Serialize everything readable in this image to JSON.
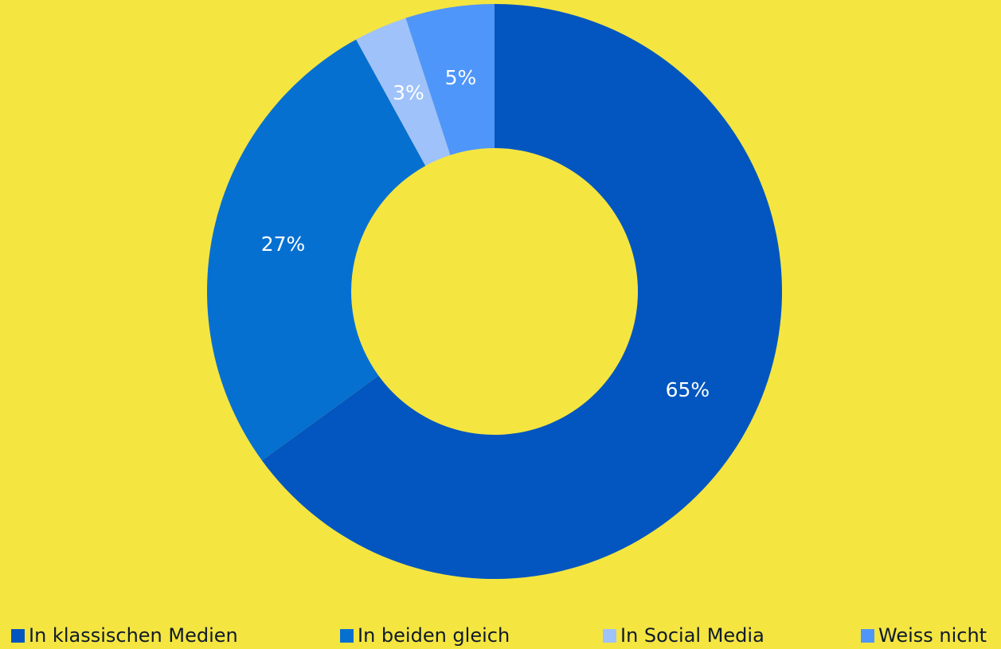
{
  "chart_data": {
    "type": "pie",
    "style": "donut",
    "title": "",
    "categories": [
      "In klassischen Medien",
      "In beiden gleich",
      "In Social Media",
      "Weiss nicht"
    ],
    "values": [
      65,
      27,
      3,
      5
    ],
    "unit": "%",
    "data_labels": [
      "65%",
      "27%",
      "3%",
      "5%"
    ],
    "colors": [
      "#0356BF",
      "#0670D1",
      "#9FC2FA",
      "#4F96FB"
    ],
    "background": "#F4E541",
    "legend_position": "bottom",
    "start_angle_deg": 0,
    "direction": "clockwise"
  },
  "legend": {
    "items": [
      {
        "label": "In klassischen Medien",
        "color": "#0356BF"
      },
      {
        "label": "In beiden gleich",
        "color": "#0670D1"
      },
      {
        "label": "In Social Media",
        "color": "#9FC2FA"
      },
      {
        "label": "Weiss nicht",
        "color": "#4F96FB"
      }
    ]
  }
}
